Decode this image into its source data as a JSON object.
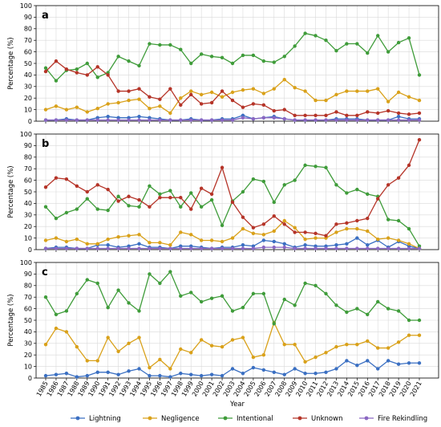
{
  "chart_data": {
    "type": "line",
    "xlabel": "Year",
    "ylabel": "Percentage (%)",
    "ylim": [
      0,
      100
    ],
    "yticks": [
      0,
      10,
      20,
      30,
      40,
      50,
      60,
      70,
      80,
      90,
      100
    ],
    "grid": true,
    "legend_placement": "bottom",
    "x": [
      "1985",
      "1986",
      "1987",
      "1988",
      "1989",
      "1990",
      "1991",
      "1992",
      "1993",
      "1994",
      "1995",
      "1996",
      "1997",
      "1998",
      "1999",
      "2000",
      "2001",
      "2002",
      "2003",
      "2004",
      "2005",
      "2006",
      "2007",
      "2008",
      "2009",
      "2010",
      "2011",
      "2012",
      "2013",
      "2014",
      "2015",
      "2016",
      "2017",
      "2018",
      "2019",
      "2020",
      "2021"
    ],
    "series_meta": [
      {
        "name": "Lightning",
        "color": "#3a6fc2"
      },
      {
        "name": "Negligence",
        "color": "#d9a11a"
      },
      {
        "name": "Intentional",
        "color": "#3f9c3a"
      },
      {
        "name": "Unknown",
        "color": "#b53428"
      },
      {
        "name": "Fire Rekindling",
        "color": "#8a67c2"
      }
    ],
    "panels": [
      {
        "label": "a",
        "series": [
          {
            "name": "Lightning",
            "values": [
              1,
              1,
              2,
              1,
              1,
              3,
              4,
              3,
              3,
              4,
              3,
              2,
              1,
              1,
              2,
              1,
              1,
              2,
              2,
              5,
              2,
              3,
              4,
              2,
              1,
              1,
              1,
              1,
              2,
              2,
              2,
              1,
              1,
              1,
              4,
              2,
              2
            ]
          },
          {
            "name": "Negligence",
            "values": [
              10,
              13,
              10,
              12,
              8,
              11,
              15,
              16,
              18,
              19,
              11,
              13,
              7,
              20,
              26,
              23,
              25,
              21,
              25,
              27,
              28,
              24,
              28,
              36,
              29,
              26,
              18,
              18,
              23,
              26,
              26,
              26,
              28,
              17,
              25,
              21,
              18
            ]
          },
          {
            "name": "Intentional",
            "values": [
              46,
              35,
              44,
              45,
              50,
              38,
              42,
              56,
              52,
              48,
              67,
              66,
              66,
              62,
              50,
              58,
              56,
              55,
              50,
              57,
              57,
              52,
              51,
              56,
              65,
              76,
              74,
              70,
              61,
              67,
              67,
              59,
              74,
              60,
              68,
              72,
              40
            ]
          },
          {
            "name": "Unknown",
            "values": [
              43,
              52,
              45,
              42,
              40,
              47,
              40,
              26,
              26,
              28,
              21,
              19,
              28,
              14,
              23,
              15,
              16,
              26,
              18,
              12,
              15,
              14,
              9,
              10,
              5,
              5,
              5,
              5,
              8,
              5,
              5,
              8,
              7,
              9,
              7,
              6,
              7
            ]
          },
          {
            "name": "Fire Rekindling",
            "values": [
              1,
              1,
              1,
              1,
              1,
              1,
              1,
              1,
              1,
              1,
              1,
              1,
              1,
              1,
              1,
              1,
              1,
              1,
              1,
              3,
              2,
              3,
              3,
              2,
              1,
              1,
              1,
              1,
              1,
              1,
              1,
              1,
              1,
              1,
              1,
              1,
              1
            ]
          }
        ]
      },
      {
        "label": "b",
        "series": [
          {
            "name": "Lightning",
            "values": [
              1,
              2,
              2,
              1,
              1,
              4,
              4,
              2,
              3,
              5,
              2,
              2,
              1,
              3,
              3,
              2,
              1,
              2,
              2,
              4,
              3,
              8,
              7,
              5,
              2,
              4,
              3,
              3,
              4,
              5,
              10,
              4,
              8,
              2,
              7,
              3,
              1
            ]
          },
          {
            "name": "Negligence",
            "values": [
              8,
              10,
              7,
              9,
              5,
              5,
              9,
              11,
              12,
              13,
              6,
              6,
              4,
              15,
              13,
              8,
              8,
              7,
              10,
              18,
              14,
              13,
              16,
              25,
              19,
              9,
              10,
              10,
              15,
              18,
              18,
              16,
              9,
              10,
              8,
              5,
              1
            ]
          },
          {
            "name": "Intentional",
            "values": [
              37,
              27,
              32,
              35,
              44,
              35,
              34,
              46,
              38,
              37,
              55,
              48,
              51,
              37,
              49,
              37,
              43,
              21,
              42,
              50,
              61,
              59,
              41,
              56,
              60,
              73,
              72,
              71,
              56,
              49,
              52,
              48,
              46,
              26,
              25,
              18,
              3
            ]
          },
          {
            "name": "Unknown",
            "values": [
              54,
              62,
              61,
              55,
              50,
              56,
              52,
              42,
              46,
              43,
              37,
              45,
              45,
              45,
              35,
              53,
              48,
              71,
              41,
              28,
              19,
              22,
              29,
              22,
              15,
              15,
              14,
              12,
              22,
              23,
              25,
              27,
              44,
              56,
              62,
              73,
              95
            ]
          },
          {
            "name": "Fire Rekindling",
            "values": [
              1,
              1,
              1,
              1,
              1,
              1,
              1,
              1,
              1,
              1,
              1,
              1,
              1,
              1,
              1,
              1,
              1,
              1,
              1,
              1,
              1,
              2,
              2,
              2,
              1,
              1,
              1,
              1,
              1,
              1,
              1,
              1,
              1,
              1,
              1,
              1,
              1
            ]
          }
        ]
      },
      {
        "label": "c",
        "series": [
          {
            "name": "Lightning",
            "values": [
              2,
              3,
              4,
              1,
              2,
              5,
              5,
              3,
              6,
              8,
              2,
              2,
              1,
              4,
              3,
              2,
              3,
              2,
              8,
              4,
              9,
              7,
              5,
              3,
              8,
              4,
              4,
              5,
              8,
              15,
              11,
              15,
              8,
              15,
              12,
              13,
              13
            ]
          },
          {
            "name": "Negligence",
            "values": [
              29,
              43,
              40,
              27,
              15,
              15,
              35,
              23,
              30,
              35,
              9,
              16,
              8,
              25,
              22,
              33,
              28,
              27,
              33,
              35,
              18,
              20,
              48,
              29,
              29,
              14,
              18,
              22,
              27,
              29,
              29,
              32,
              26,
              26,
              31,
              37,
              37
            ]
          },
          {
            "name": "Intentional",
            "values": [
              70,
              55,
              58,
              73,
              85,
              82,
              61,
              76,
              65,
              58,
              90,
              82,
              92,
              71,
              74,
              66,
              69,
              71,
              58,
              61,
              73,
              73,
              47,
              68,
              63,
              82,
              80,
              73,
              63,
              57,
              60,
              55,
              66,
              60,
              58,
              50,
              50
            ]
          },
          {
            "name": "Unknown",
            "values": []
          },
          {
            "name": "Fire Rekindling",
            "values": []
          }
        ]
      }
    ]
  }
}
